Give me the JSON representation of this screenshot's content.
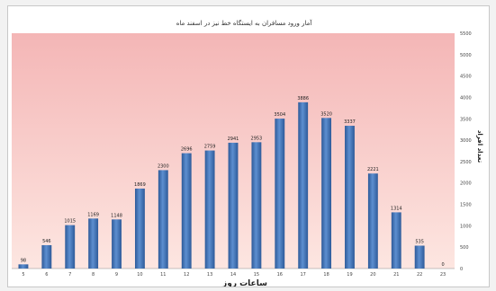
{
  "chart_data": {
    "type": "bar",
    "title": "آمار ورود مسافران به ایستگاه خط نیز در اسفند ماه",
    "xlabel": "ساعات روز",
    "ylabel": "تعداد افراد",
    "categories": [
      "5",
      "6",
      "7",
      "8",
      "9",
      "10",
      "11",
      "12",
      "13",
      "14",
      "15",
      "16",
      "17",
      "18",
      "19",
      "20",
      "21",
      "22",
      "23"
    ],
    "values": [
      98,
      546,
      1015,
      1169,
      1148,
      1869,
      2300,
      2696,
      2759,
      2941,
      2953,
      3504,
      3886,
      3520,
      3337,
      2221,
      1314,
      535,
      0
    ],
    "value_labels": [
      "98",
      "546",
      "1015",
      "1169",
      "1148",
      "1869",
      "2300",
      "2696",
      "2759",
      "2941",
      "2953",
      "3504",
      "3886",
      "3520",
      "3337",
      "2221",
      "1314",
      "535",
      "0"
    ],
    "yticks": [
      0,
      500,
      1000,
      1500,
      2000,
      2500,
      3000,
      3500,
      4000,
      4500,
      5000,
      5500
    ],
    "ylim": [
      0,
      5500
    ],
    "y_axis_side": "right",
    "grid": false,
    "colors": {
      "bar": "#3f73b8",
      "plot_top": "#f4b6b6",
      "plot_bottom": "#fde6e1",
      "watermark": "#c4c4c4"
    }
  }
}
